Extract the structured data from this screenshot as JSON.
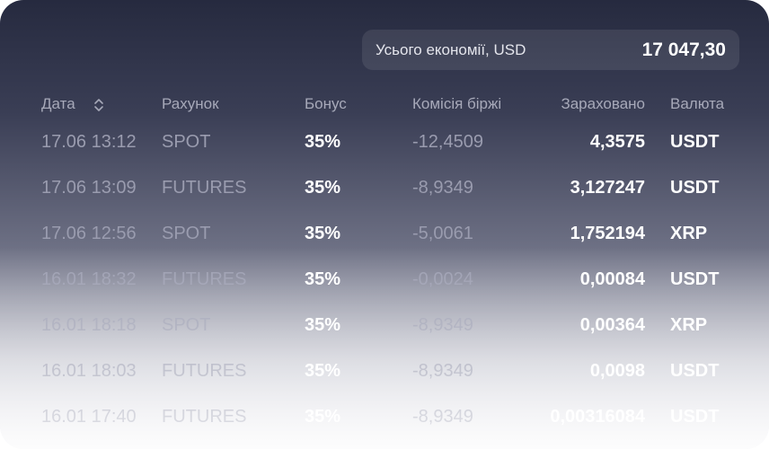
{
  "summary": {
    "label": "Усього економії, USD",
    "value": "17 047,30"
  },
  "table": {
    "headers": [
      "Дата",
      "Рахунок",
      "Бонус",
      "Комісія біржі",
      "Зараховано",
      "Валюта"
    ],
    "rows": [
      [
        "17.06 13:12",
        "SPOT",
        "35%",
        "-12,4509",
        "4,3575",
        "USDT"
      ],
      [
        "17.06 13:09",
        "FUTURES",
        "35%",
        "-8,9349",
        "3,127247",
        "USDT"
      ],
      [
        "17.06 12:56",
        "SPOT",
        "35%",
        "-5,0061",
        "1,752194",
        "XRP"
      ],
      [
        "16.01 18:32",
        "FUTURES",
        "35%",
        "-0,0024",
        "0,00084",
        "USDT"
      ],
      [
        "16.01 18:18",
        "SPOT",
        "35%",
        "-8,9349",
        "0,00364",
        "XRP"
      ],
      [
        "16.01 18:03",
        "FUTURES",
        "35%",
        "-8,9349",
        "0,0098",
        "USDT"
      ],
      [
        "16.01 17:40",
        "FUTURES",
        "35%",
        "-8,9349",
        "0,00316084",
        "USDT"
      ]
    ]
  }
}
